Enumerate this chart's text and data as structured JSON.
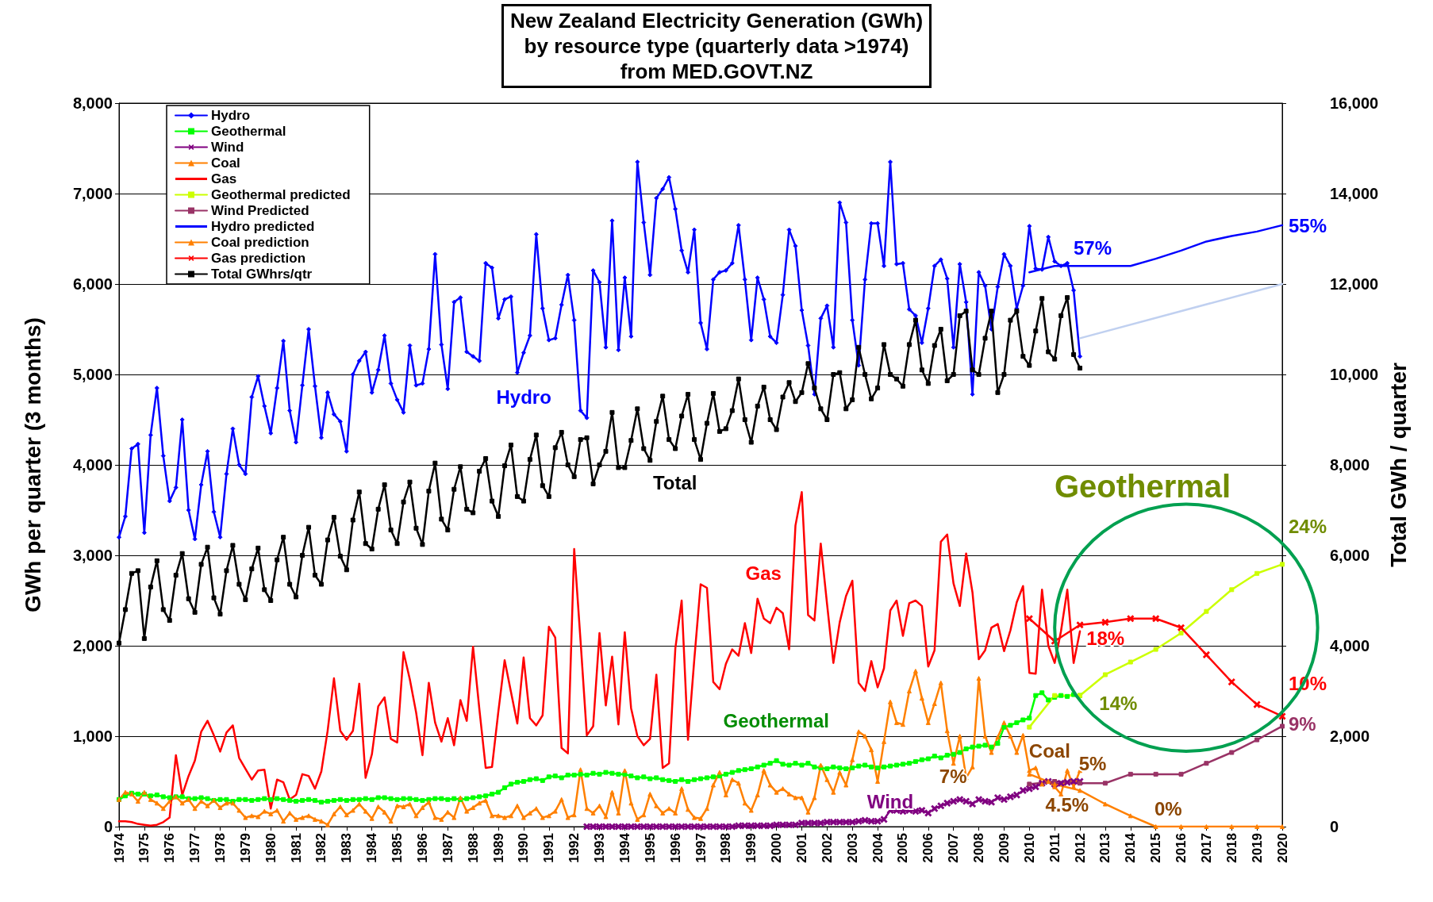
{
  "chart_data": {
    "type": "line",
    "title": "New Zealand Electricity Generation (GWh)\nby resource type (quarterly data >1974)\nfrom MED.GOVT.NZ",
    "ylabel": "GWh per quarter (3 months)",
    "y2label": "Total GWh / quarter",
    "x": [
      1974,
      1974.25,
      1974.5,
      1974.75,
      1975,
      1975.25,
      1975.5,
      1975.75,
      1976,
      1976.25,
      1976.5,
      1976.75,
      1977,
      1977.25,
      1977.5,
      1977.75,
      1978,
      1978.25,
      1978.5,
      1978.75,
      1979,
      1979.25,
      1979.5,
      1979.75,
      1980,
      1980.25,
      1980.5,
      1980.75,
      1981,
      1981.25,
      1981.5,
      1981.75,
      1982,
      1982.25,
      1982.5,
      1982.75,
      1983,
      1983.25,
      1983.5,
      1983.75,
      1984,
      1984.25,
      1984.5,
      1984.75,
      1985,
      1985.25,
      1985.5,
      1985.75,
      1986,
      1986.25,
      1986.5,
      1986.75,
      1987,
      1987.25,
      1987.5,
      1987.75,
      1988,
      1988.25,
      1988.5,
      1988.75,
      1989,
      1989.25,
      1989.5,
      1989.75,
      1990,
      1990.25,
      1990.5,
      1990.75,
      1991,
      1991.25,
      1991.5,
      1991.75,
      1992,
      1992.25,
      1992.5,
      1992.75,
      1993,
      1993.25,
      1993.5,
      1993.75,
      1994,
      1994.25,
      1994.5,
      1994.75,
      1995,
      1995.25,
      1995.5,
      1995.75,
      1996,
      1996.25,
      1996.5,
      1996.75,
      1997,
      1997.25,
      1997.5,
      1997.75,
      1998,
      1998.25,
      1998.5,
      1998.75,
      1999,
      1999.25,
      1999.5,
      1999.75,
      2000,
      2000.25,
      2000.5,
      2000.75,
      2001,
      2001.25,
      2001.5,
      2001.75,
      2002,
      2002.25,
      2002.5,
      2002.75,
      2003,
      2003.25,
      2003.5,
      2003.75,
      2004,
      2004.25,
      2004.5,
      2004.75,
      2005,
      2005.25,
      2005.5,
      2005.75,
      2006,
      2006.25,
      2006.5,
      2006.75,
      2007,
      2007.25,
      2007.5,
      2007.75,
      2008,
      2008.25,
      2008.5,
      2008.75,
      2009,
      2009.25,
      2009.5,
      2009.75,
      2010,
      2010.25,
      2010.5,
      2010.75,
      2011,
      2011.25,
      2011.5,
      2011.75,
      2012
    ],
    "series": [
      {
        "name": "Hydro",
        "color": "#0000ff",
        "marker": "diamond",
        "values": [
          3200,
          3430,
          4180,
          4230,
          3250,
          4330,
          4850,
          4100,
          3600,
          3750,
          4500,
          3500,
          3180,
          3780,
          4150,
          3480,
          3200,
          3900,
          4400,
          4000,
          3900,
          4750,
          4980,
          4650,
          4350,
          4850,
          5370,
          4600,
          4250,
          4880,
          5500,
          4870,
          4300,
          4800,
          4560,
          4480,
          4150,
          5000,
          5150,
          5250,
          4800,
          5050,
          5430,
          4900,
          4720,
          4580,
          5320,
          4880,
          4900,
          5280,
          6330,
          5330,
          4840,
          5800,
          5850,
          5250,
          5200,
          5150,
          6230,
          6180,
          5620,
          5830,
          5860,
          5020,
          5240,
          5430,
          6550,
          5730,
          5380,
          5400,
          5770,
          6100,
          5600,
          4600,
          4520,
          6150,
          6020,
          5300,
          6700,
          5270,
          6070,
          5420,
          7350,
          6680,
          6100,
          6950,
          7050,
          7180,
          6830,
          6370,
          6130,
          6600,
          5570,
          5280,
          6050,
          6130,
          6150,
          6230,
          6650,
          6050,
          5380,
          6070,
          5830,
          5420,
          5350,
          5880,
          6600,
          6420,
          5710,
          5320,
          4780,
          5620,
          5760,
          5300,
          6900,
          6680,
          5600,
          5100,
          6050,
          6670,
          6670,
          6200,
          7350,
          6220,
          6230,
          5720,
          5650,
          5350,
          5730,
          6200,
          6270,
          6060,
          5300,
          6220,
          5800,
          4780,
          6130,
          5980,
          5500,
          5970,
          6330,
          6200,
          5730,
          5980,
          6640,
          6170,
          6160,
          6520,
          6250,
          6200,
          6230,
          5930,
          5200
        ]
      },
      {
        "name": "Geothermal",
        "color": "#00ff00",
        "marker": "square",
        "values": [
          300,
          340,
          370,
          360,
          360,
          340,
          350,
          330,
          320,
          330,
          330,
          310,
          310,
          320,
          310,
          290,
          300,
          300,
          280,
          300,
          300,
          290,
          300,
          310,
          300,
          310,
          300,
          290,
          280,
          290,
          300,
          290,
          270,
          280,
          290,
          300,
          290,
          300,
          300,
          310,
          300,
          320,
          320,
          310,
          300,
          310,
          310,
          300,
          290,
          300,
          310,
          310,
          300,
          310,
          300,
          310,
          320,
          330,
          340,
          360,
          380,
          430,
          470,
          490,
          500,
          520,
          530,
          510,
          550,
          560,
          540,
          570,
          570,
          580,
          570,
          590,
          580,
          600,
          590,
          580,
          580,
          560,
          540,
          550,
          530,
          540,
          520,
          510,
          500,
          520,
          500,
          520,
          530,
          540,
          550,
          560,
          580,
          600,
          620,
          630,
          640,
          660,
          680,
          700,
          730,
          690,
          680,
          700,
          680,
          700,
          660,
          650,
          640,
          660,
          650,
          640,
          650,
          670,
          680,
          660,
          650,
          660,
          670,
          680,
          690,
          700,
          720,
          740,
          750,
          780,
          760,
          790,
          800,
          820,
          860,
          880,
          890,
          900,
          880,
          920,
          1100,
          1120,
          1150,
          1180,
          1200,
          1450,
          1480,
          1400,
          1430,
          1450,
          1440,
          1460,
          1450
        ]
      },
      {
        "name": "Wind",
        "color": "#800080",
        "marker": "cross",
        "x": [
          1992.5,
          1992.75,
          1993,
          1993.25,
          1993.5,
          1993.75,
          1994,
          1994.25,
          1994.5,
          1994.75,
          1995,
          1995.25,
          1995.5,
          1995.75,
          1996,
          1996.25,
          1996.5,
          1996.75,
          1997,
          1997.25,
          1997.5,
          1997.75,
          1998,
          1998.25,
          1998.5,
          1998.75,
          1999,
          1999.25,
          1999.5,
          1999.75,
          2000,
          2000.25,
          2000.5,
          2000.75,
          2001,
          2001.25,
          2001.5,
          2001.75,
          2002,
          2002.25,
          2002.5,
          2002.75,
          2003,
          2003.25,
          2003.5,
          2003.75,
          2004,
          2004.25,
          2004.5,
          2004.75,
          2005,
          2005.25,
          2005.5,
          2005.75,
          2006,
          2006.25,
          2006.5,
          2006.75,
          2007,
          2007.25,
          2007.5,
          2007.75,
          2008,
          2008.25,
          2008.5,
          2008.75,
          2009,
          2009.25,
          2009.5,
          2009.75,
          2010,
          2010.25,
          2010.5,
          2010.75,
          2011,
          2011.25,
          2011.5,
          2011.75,
          2012
        ],
        "values": [
          0,
          0,
          0,
          0,
          0,
          0,
          0,
          0,
          0,
          0,
          0,
          0,
          0,
          0,
          0,
          0,
          0,
          0,
          0,
          0,
          0,
          0,
          0,
          0,
          10,
          10,
          10,
          10,
          10,
          10,
          20,
          20,
          20,
          20,
          40,
          40,
          40,
          40,
          50,
          50,
          50,
          50,
          50,
          60,
          70,
          60,
          60,
          80,
          180,
          180,
          170,
          180,
          170,
          180,
          150,
          200,
          230,
          260,
          280,
          300,
          280,
          250,
          300,
          280,
          270,
          320,
          300,
          330,
          350,
          400,
          420,
          440,
          480,
          500,
          470,
          480,
          490,
          500,
          500
        ]
      },
      {
        "name": "Coal",
        "color": "#ff8000",
        "marker": "triangle",
        "values": [
          300,
          380,
          360,
          280,
          380,
          300,
          260,
          200,
          280,
          330,
          260,
          300,
          200,
          280,
          230,
          290,
          210,
          260,
          260,
          180,
          100,
          120,
          110,
          170,
          140,
          180,
          60,
          150,
          80,
          100,
          120,
          80,
          60,
          20,
          140,
          220,
          130,
          180,
          250,
          170,
          90,
          220,
          160,
          60,
          230,
          220,
          250,
          120,
          210,
          270,
          100,
          80,
          160,
          100,
          320,
          170,
          210,
          260,
          290,
          120,
          120,
          100,
          120,
          230,
          100,
          150,
          200,
          100,
          120,
          170,
          300,
          100,
          130,
          630,
          200,
          150,
          230,
          110,
          380,
          150,
          620,
          260,
          80,
          130,
          360,
          230,
          150,
          200,
          150,
          420,
          190,
          100,
          90,
          200,
          460,
          600,
          350,
          520,
          480,
          260,
          180,
          350,
          620,
          460,
          380,
          420,
          360,
          320,
          320,
          160,
          320,
          680,
          520,
          380,
          600,
          460,
          740,
          1050,
          1000,
          850,
          500,
          940,
          1380,
          1150,
          1130,
          1500,
          1720,
          1420,
          1150,
          1360,
          1590,
          1060,
          700,
          1000,
          540,
          660,
          1640,
          1000,
          820,
          990,
          1150,
          1000,
          820,
          1010,
          620,
          650,
          470,
          500,
          440,
          360,
          620,
          440,
          620
        ]
      },
      {
        "name": "Gas",
        "color": "#ff0000",
        "marker": "none",
        "values": [
          60,
          60,
          50,
          30,
          20,
          10,
          20,
          50,
          100,
          790,
          350,
          560,
          730,
          1050,
          1170,
          1010,
          830,
          1040,
          1120,
          760,
          640,
          520,
          620,
          630,
          200,
          520,
          490,
          300,
          350,
          580,
          560,
          420,
          610,
          1060,
          1640,
          1060,
          960,
          1060,
          1580,
          540,
          800,
          1330,
          1430,
          970,
          930,
          1930,
          1630,
          1260,
          790,
          1590,
          1150,
          940,
          1200,
          900,
          1400,
          1170,
          1990,
          1300,
          650,
          660,
          1270,
          1840,
          1490,
          1140,
          1870,
          1200,
          1120,
          1230,
          2210,
          2090,
          870,
          810,
          3070,
          2060,
          1010,
          1110,
          2140,
          1340,
          1880,
          1130,
          2150,
          1310,
          1000,
          900,
          970,
          1680,
          650,
          700,
          1970,
          2500,
          960,
          1850,
          2680,
          2640,
          1600,
          1520,
          1800,
          1960,
          1890,
          2250,
          1920,
          2520,
          2300,
          2250,
          2420,
          2360,
          1960,
          3330,
          3700,
          2340,
          2280,
          3130,
          2460,
          1810,
          2260,
          2550,
          2720,
          1590,
          1500,
          1830,
          1540,
          1750,
          2390,
          2500,
          2110,
          2470,
          2500,
          2440,
          1770,
          1950,
          3150,
          3230,
          2690,
          2440,
          3020,
          2590,
          1850,
          1950,
          2200,
          2240,
          1940,
          2170,
          2480,
          2660,
          1700,
          1690,
          2620,
          2000,
          1810,
          2160,
          2620,
          1810,
          2160
        ]
      },
      {
        "name": "Geothermal predicted",
        "color": "#ccff00",
        "marker": "square",
        "x": [
          2010,
          2011,
          2012,
          2013,
          2014,
          2015,
          2016,
          2017,
          2018,
          2019,
          2020
        ],
        "values": [
          1100,
          1450,
          1450,
          1680,
          1820,
          1960,
          2140,
          2380,
          2620,
          2800,
          2900
        ]
      },
      {
        "name": "Wind Predicted",
        "color": "#993366",
        "marker": "square",
        "x": [
          2010,
          2011,
          2012,
          2013,
          2014,
          2015,
          2016,
          2017,
          2018,
          2019,
          2020
        ],
        "values": [
          470,
          500,
          480,
          480,
          580,
          580,
          580,
          700,
          820,
          960,
          1110
        ]
      },
      {
        "name": "Hydro predicted",
        "color": "#0000ff",
        "marker": "none",
        "x": [
          2010,
          2011,
          2012,
          2013,
          2014,
          2015,
          2016,
          2017,
          2018,
          2019,
          2020
        ],
        "values": [
          6130,
          6200,
          6200,
          6200,
          6200,
          6280,
          6370,
          6470,
          6530,
          6580,
          6650
        ]
      },
      {
        "name": "Coal prediction",
        "color": "#ff8000",
        "marker": "triangle",
        "x": [
          2010,
          2011,
          2012,
          2013,
          2014,
          2015,
          2016,
          2017,
          2018,
          2019,
          2020
        ],
        "values": [
          580,
          470,
          400,
          250,
          120,
          0,
          0,
          0,
          0,
          0,
          0
        ]
      },
      {
        "name": "Gas prediction",
        "color": "#ff0000",
        "marker": "cross",
        "x": [
          2010,
          2011,
          2012,
          2013,
          2014,
          2015,
          2016,
          2017,
          2018,
          2019,
          2020
        ],
        "values": [
          2300,
          2050,
          2230,
          2260,
          2300,
          2300,
          2200,
          1900,
          1600,
          1350,
          1220
        ]
      },
      {
        "name": "Total GWhrs/qtr",
        "color": "#000000",
        "marker": "square",
        "axis": "y2",
        "values": [
          4060,
          4800,
          5600,
          5660,
          4160,
          5300,
          5880,
          4800,
          4560,
          5560,
          6040,
          5040,
          4740,
          5800,
          6180,
          5060,
          4700,
          5660,
          6220,
          5360,
          5020,
          5700,
          6160,
          5240,
          5000,
          5900,
          6400,
          5360,
          5080,
          6000,
          6620,
          5560,
          5360,
          6340,
          6840,
          5980,
          5680,
          6780,
          7400,
          6260,
          6140,
          7020,
          7560,
          6560,
          6260,
          7180,
          7620,
          6600,
          6240,
          7420,
          8040,
          6800,
          6560,
          7460,
          7960,
          7020,
          6940,
          7860,
          8140,
          7200,
          6860,
          7980,
          8440,
          7300,
          7200,
          8120,
          8660,
          7540,
          7300,
          8380,
          8720,
          8000,
          7740,
          8560,
          8600,
          7580,
          8000,
          8300,
          9160,
          7940,
          7940,
          8540,
          9240,
          8360,
          8100,
          8960,
          9520,
          8560,
          8360,
          9080,
          9560,
          8560,
          8120,
          8920,
          9580,
          8740,
          8800,
          9200,
          9900,
          9000,
          8500,
          9300,
          9720,
          9000,
          8780,
          9500,
          9820,
          9400,
          9600,
          10240,
          9700,
          9240,
          9000,
          10000,
          10040,
          9240,
          9440,
          10600,
          10000,
          9460,
          9700,
          10660,
          10000,
          9900,
          9740,
          10660,
          11200,
          10100,
          9800,
          10640,
          11000,
          9860,
          10000,
          11300,
          11400,
          10100,
          10000,
          10800,
          11400,
          9600,
          10000,
          11200,
          11400,
          10400,
          10200,
          10960,
          11680,
          10500,
          10340,
          11300,
          11700,
          10440,
          10140
        ]
      },
      {
        "color": "#c0d0f0",
        "marker": "none",
        "axis": "y2",
        "x": [
          2012,
          2020
        ],
        "values": [
          10800,
          12000
        ]
      }
    ],
    "xlim": [
      1974,
      2020
    ],
    "xticks": [
      1974,
      1975,
      1976,
      1977,
      1978,
      1979,
      1980,
      1981,
      1982,
      1983,
      1984,
      1985,
      1986,
      1987,
      1988,
      1989,
      1990,
      1991,
      1992,
      1993,
      1994,
      1995,
      1996,
      1997,
      1998,
      1999,
      2000,
      2001,
      2002,
      2003,
      2004,
      2005,
      2006,
      2007,
      2008,
      2009,
      2010,
      2011,
      2012,
      2013,
      2014,
      2015,
      2016,
      2017,
      2018,
      2019,
      2020
    ],
    "ylim": [
      0,
      8000
    ],
    "yticks": [
      0,
      {
        "value": 1000,
        "label": "1,000"
      },
      {
        "value": 2000,
        "label": "2,000"
      },
      {
        "value": 3000,
        "label": "3,000"
      },
      {
        "value": 4000,
        "label": "4,000"
      },
      {
        "value": 5000,
        "label": "5,000"
      },
      {
        "value": 6000,
        "label": "6,000"
      },
      {
        "value": 7000,
        "label": "7,000"
      },
      {
        "value": 8000,
        "label": "8,000"
      }
    ],
    "y2lim": [
      0,
      16000
    ],
    "y2ticks": [
      0,
      {
        "value": 2000,
        "label": "2,000"
      },
      {
        "value": 4000,
        "label": "4,000"
      },
      {
        "value": 6000,
        "label": "6,000"
      },
      {
        "value": 8000,
        "label": "8,000"
      },
      {
        "value": 10000,
        "label": "10,000"
      },
      {
        "value": 12000,
        "label": "12,000"
      },
      {
        "value": 14000,
        "label": "14,000"
      },
      {
        "value": 16000,
        "label": "16,000"
      }
    ],
    "grid": "y",
    "legend": "top left",
    "annotations": [
      "Hydro",
      "Total",
      "Gas",
      "Geothermal",
      "Geothermal",
      "Coal",
      "Wind",
      "57%",
      "55%",
      "24%",
      "18%",
      "14%",
      "10%",
      "9%",
      "7%",
      "5%",
      "4.5%",
      "0%"
    ]
  }
}
